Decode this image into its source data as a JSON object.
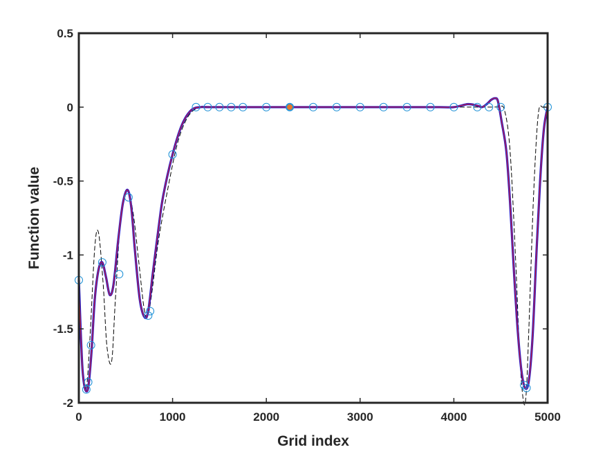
{
  "chart_data": {
    "type": "line",
    "title": "",
    "xlabel": "Grid index",
    "ylabel": "Function value",
    "xlim": [
      0,
      5000
    ],
    "ylim": [
      -2,
      0.5
    ],
    "x_ticks": [
      0,
      1000,
      2000,
      3000,
      4000,
      5000
    ],
    "x_tick_labels": [
      "0",
      "1000",
      "2000",
      "3000",
      "4000",
      "5000"
    ],
    "y_ticks": [
      0.5,
      0,
      -0.5,
      -1,
      -1.5,
      -2
    ],
    "y_tick_labels": [
      "0.5",
      "0",
      "-0.5",
      "-1",
      "-1.5",
      "-2"
    ],
    "grid": false,
    "legend": "none",
    "series": [
      {
        "style": "dashed-black-thin",
        "color": "#000000",
        "x": [
          0,
          40,
          80,
          120,
          170,
          210,
          260,
          300,
          350,
          390,
          450,
          520,
          580,
          640,
          700,
          740,
          780,
          850,
          950,
          1050,
          1150,
          1250,
          1350,
          2000,
          3000,
          4000,
          4200,
          4400,
          4480,
          4540,
          4600,
          4660,
          4700,
          4740,
          4770,
          4800,
          4850,
          4900,
          4950,
          5000
        ],
        "y": [
          -1.17,
          -1.75,
          -1.9,
          -1.55,
          -0.95,
          -0.85,
          -1.2,
          -1.62,
          -1.72,
          -1.3,
          -0.72,
          -0.57,
          -0.72,
          -1.05,
          -1.38,
          -1.4,
          -1.25,
          -0.9,
          -0.55,
          -0.25,
          -0.08,
          -0.01,
          0,
          0,
          0,
          0,
          0,
          0,
          0,
          -0.02,
          -0.3,
          -1.05,
          -1.65,
          -1.98,
          -1.95,
          -1.5,
          -0.6,
          -0.05,
          0,
          0
        ]
      },
      {
        "style": "solid-blue-thick",
        "color": "#1f14c8",
        "x": [
          0,
          40,
          90,
          130,
          170,
          210,
          250,
          290,
          330,
          370,
          420,
          470,
          520,
          560,
          600,
          650,
          700,
          740,
          790,
          850,
          900,
          1000,
          1100,
          1200,
          1300,
          1400,
          2000,
          3000,
          3800,
          4000,
          4150,
          4250,
          4300,
          4350,
          4400,
          4440,
          4470,
          4510,
          4560,
          4600,
          4640,
          4680,
          4720,
          4760,
          4800,
          4840,
          4880,
          4920,
          4960,
          5000
        ],
        "y": [
          -1.17,
          -1.78,
          -1.92,
          -1.7,
          -1.3,
          -1.1,
          -1.05,
          -1.15,
          -1.27,
          -1.2,
          -0.9,
          -0.65,
          -0.56,
          -0.68,
          -0.98,
          -1.3,
          -1.42,
          -1.38,
          -1.12,
          -0.82,
          -0.6,
          -0.32,
          -0.12,
          -0.02,
          0,
          0,
          0,
          0,
          0,
          0,
          0.02,
          0.01,
          0.0,
          0.02,
          0.05,
          0.06,
          0.04,
          -0.1,
          -0.3,
          -0.65,
          -1.1,
          -1.5,
          -1.78,
          -1.9,
          -1.85,
          -1.55,
          -1.0,
          -0.5,
          -0.15,
          0
        ]
      },
      {
        "style": "solid-red-thin",
        "color": "#e8282a",
        "x": [
          0,
          40,
          90,
          130,
          170,
          210,
          250,
          290,
          330,
          370,
          420,
          470,
          520,
          560,
          600,
          650,
          700,
          740,
          790,
          850,
          900,
          1000,
          1100,
          1200,
          1300,
          1400,
          2000,
          3000,
          3800,
          4000,
          4150,
          4250,
          4300,
          4350,
          4400,
          4440,
          4470,
          4510,
          4560,
          4600,
          4640,
          4680,
          4720,
          4760,
          4800,
          4840,
          4880,
          4920,
          4960,
          5000
        ],
        "y": [
          -1.17,
          -1.78,
          -1.92,
          -1.7,
          -1.3,
          -1.1,
          -1.05,
          -1.15,
          -1.27,
          -1.2,
          -0.9,
          -0.65,
          -0.56,
          -0.68,
          -0.98,
          -1.3,
          -1.42,
          -1.38,
          -1.12,
          -0.82,
          -0.6,
          -0.32,
          -0.12,
          -0.02,
          0,
          0,
          0,
          0,
          0,
          0,
          0.02,
          0.01,
          0.0,
          0.02,
          0.05,
          0.06,
          0.04,
          -0.1,
          -0.3,
          -0.65,
          -1.1,
          -1.5,
          -1.78,
          -1.9,
          -1.85,
          -1.55,
          -1.0,
          -0.5,
          -0.15,
          0
        ]
      }
    ],
    "markers": {
      "style": "open-circle",
      "color": "#1a8fd6",
      "x": [
        0,
        80,
        100,
        130,
        250,
        430,
        530,
        740,
        760,
        1000,
        1250,
        1375,
        1500,
        1625,
        1750,
        2000,
        2250,
        2500,
        2750,
        3000,
        3250,
        3500,
        3750,
        4000,
        4250,
        4375,
        4500,
        4750,
        4775,
        5000
      ],
      "y": [
        -1.17,
        -1.91,
        -1.86,
        -1.61,
        -1.05,
        -1.13,
        -0.61,
        -1.41,
        -1.38,
        -0.32,
        0,
        0,
        0,
        0,
        0,
        0,
        0,
        0,
        0,
        0,
        0,
        0,
        0,
        0,
        0,
        0,
        0,
        -1.88,
        -1.9,
        0
      ]
    },
    "highlight_point": {
      "style": "filled-circle",
      "color": "#e8782a",
      "x": 2250,
      "y": 0
    }
  }
}
